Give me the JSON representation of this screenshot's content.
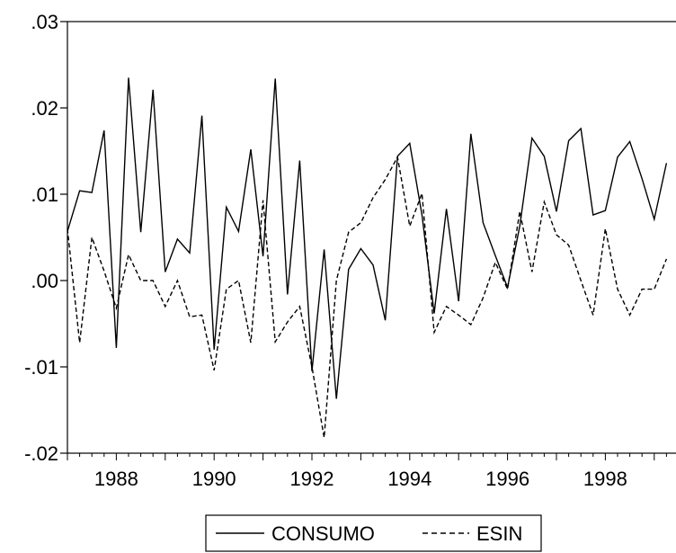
{
  "chart_data": {
    "type": "line",
    "title": "",
    "xlabel": "",
    "ylabel": "",
    "x_range": [
      1987.0,
      1999.5
    ],
    "ylim": [
      -0.02,
      0.03
    ],
    "y_ticks": [
      0.03,
      0.02,
      0.01,
      0.0,
      -0.01,
      -0.02
    ],
    "y_tick_labels": [
      ".03",
      ".02",
      ".01",
      ".00",
      "-.01",
      "-.02"
    ],
    "x_ticks": [
      1988,
      1990,
      1992,
      1994,
      1996,
      1998
    ],
    "x_tick_labels": [
      "1988",
      "1990",
      "1992",
      "1994",
      "1996",
      "1998"
    ],
    "frequency": "quarterly",
    "start": "1987Q1",
    "grid": false,
    "legend_position": "bottom-center",
    "series": [
      {
        "name": "CONSUMO",
        "style": "solid",
        "color": "#000000",
        "values": [
          0.0057,
          0.0104,
          0.0102,
          0.0174,
          -0.0078,
          0.0235,
          0.0056,
          0.0221,
          0.001,
          0.0048,
          0.0032,
          0.0191,
          -0.008,
          0.0085,
          0.0057,
          0.0152,
          0.0028,
          0.0234,
          -0.0016,
          0.0139,
          -0.0105,
          0.0036,
          -0.0137,
          0.0013,
          0.0037,
          0.0018,
          -0.0046,
          0.0144,
          0.0159,
          0.0076,
          -0.0038,
          0.0083,
          -0.0024,
          0.017,
          0.0067,
          0.0029,
          -0.0008,
          0.0063,
          0.0165,
          0.0144,
          0.008,
          0.0162,
          0.0176,
          0.0076,
          0.0081,
          0.0143,
          0.0161,
          0.0118,
          0.0071,
          0.0136
        ]
      },
      {
        "name": "ESIN",
        "style": "dashed",
        "color": "#000000",
        "values": [
          0.006,
          -0.0072,
          0.005,
          0.0011,
          -0.0032,
          0.003,
          0.0,
          0.0,
          -0.003,
          0.0,
          -0.0042,
          -0.004,
          -0.0104,
          -0.001,
          0.0,
          -0.0072,
          0.0093,
          -0.0071,
          -0.0048,
          -0.003,
          -0.01,
          -0.0182,
          0.0,
          0.0056,
          0.0067,
          0.0096,
          0.0117,
          0.0143,
          0.0063,
          0.0101,
          -0.006,
          -0.003,
          -0.004,
          -0.0051,
          -0.002,
          0.0021,
          -0.001,
          0.008,
          0.001,
          0.0091,
          0.0053,
          0.0041,
          0.0,
          -0.004,
          0.006,
          -0.001,
          -0.004,
          -0.001,
          -0.001,
          0.0025
        ]
      }
    ]
  }
}
